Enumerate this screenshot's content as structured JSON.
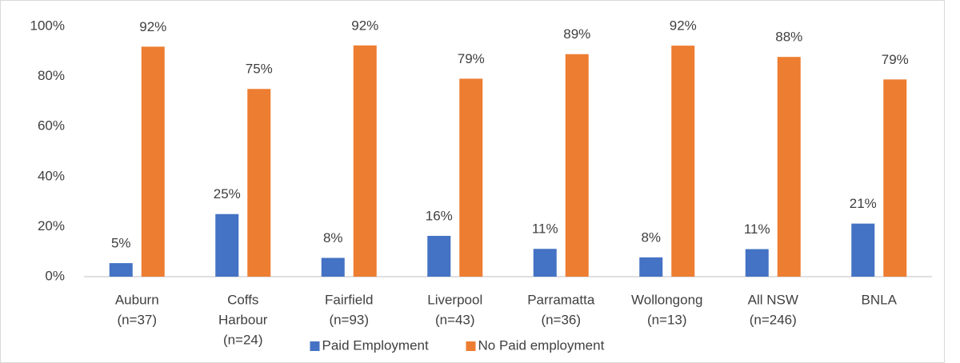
{
  "chart_data": {
    "type": "bar",
    "categories": [
      [
        "Auburn",
        "(n=37)"
      ],
      [
        "Coffs",
        "Harbour",
        "(n=24)"
      ],
      [
        "Fairfield",
        "(n=93)"
      ],
      [
        "Liverpool",
        "(n=43)"
      ],
      [
        "Parramatta",
        "(n=36)"
      ],
      [
        "Wollongong",
        "(n=13)"
      ],
      [
        "All NSW",
        "(n=246)"
      ],
      [
        "BNLA"
      ]
    ],
    "series": [
      {
        "name": "Paid Employment",
        "color": "#4472c4",
        "values": [
          5.4,
          25,
          7.5,
          16.3,
          11.1,
          7.7,
          11,
          21.2
        ],
        "value_labels": [
          "5%",
          "25%",
          "8%",
          "16%",
          "11%",
          "8%",
          "11%",
          "21%"
        ]
      },
      {
        "name": "No Paid employment",
        "color": "#ed7d31",
        "values": [
          91.9,
          75,
          92.4,
          79.1,
          88.9,
          92.3,
          87.8,
          78.8
        ],
        "value_labels": [
          "92%",
          "75%",
          "92%",
          "79%",
          "89%",
          "92%",
          "88%",
          "79%"
        ]
      }
    ],
    "ylim": [
      0,
      100
    ],
    "yticks": [
      {
        "value": 0,
        "label": "0%"
      },
      {
        "value": 20,
        "label": "20%"
      },
      {
        "value": 40,
        "label": "40%"
      },
      {
        "value": 60,
        "label": "60%"
      },
      {
        "value": 80,
        "label": "80%"
      },
      {
        "value": 100,
        "label": "100%"
      }
    ],
    "legend": "bottom"
  }
}
